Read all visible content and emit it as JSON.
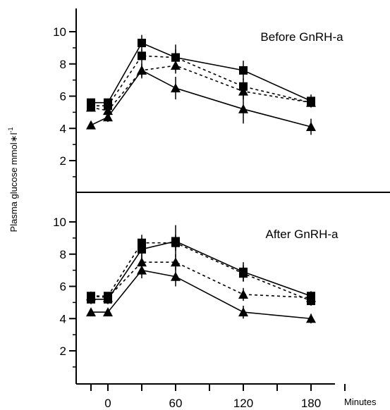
{
  "chart_data": {
    "type": "line",
    "ylabel": "Plasma glucose mmol∗l",
    "ylabel_superscript": "-1",
    "x_unit_label": "Minutes",
    "x_ticks": [
      0,
      60,
      120,
      180
    ],
    "x_tick_labels": [
      "0",
      "60",
      "120",
      "180"
    ],
    "y_ticks": [
      2,
      4,
      6,
      8,
      10
    ],
    "y_tick_labels": [
      "2",
      "4",
      "6",
      "8",
      "10"
    ],
    "x": [
      -15,
      0,
      30,
      60,
      120,
      180
    ],
    "xlim": [
      -25,
      210
    ],
    "ylim": [
      0,
      11
    ],
    "grid": false,
    "panels": [
      {
        "title": "Before GnRH-a",
        "series": [
          {
            "marker": "square",
            "line": "solid",
            "values": [
              5.6,
              5.6,
              9.3,
              8.4,
              7.6,
              5.7
            ],
            "errors": [
              0.25,
              0.25,
              0.5,
              0.8,
              0.6,
              0.4
            ]
          },
          {
            "marker": "square",
            "line": "dashed",
            "values": [
              5.4,
              5.4,
              8.5,
              8.4,
              6.6,
              5.6
            ],
            "errors": [
              0.2,
              0.2,
              0.4,
              0.5,
              0.5,
              0.3
            ]
          },
          {
            "marker": "triangle",
            "line": "dashed",
            "values": [
              5.3,
              5.1,
              7.6,
              7.9,
              6.3,
              5.6
            ],
            "errors": [
              0.2,
              0.2,
              0.4,
              0.5,
              0.5,
              0.3
            ]
          },
          {
            "marker": "triangle",
            "line": "solid",
            "values": [
              4.2,
              4.7,
              7.6,
              6.5,
              5.2,
              4.1
            ],
            "errors": [
              0.2,
              0.3,
              0.5,
              0.7,
              0.9,
              0.5
            ]
          }
        ]
      },
      {
        "title": "After   GnRH-a",
        "series": [
          {
            "marker": "square",
            "line": "solid",
            "values": [
              5.2,
              5.2,
              8.3,
              8.8,
              6.9,
              5.4
            ],
            "errors": [
              0.3,
              0.3,
              0.7,
              1.0,
              0.6,
              0.3
            ]
          },
          {
            "marker": "square",
            "line": "dashed",
            "values": [
              5.4,
              5.4,
              8.7,
              8.7,
              6.8,
              5.1
            ],
            "errors": [
              0.2,
              0.2,
              0.5,
              0.5,
              0.5,
              0.3
            ]
          },
          {
            "marker": "triangle",
            "line": "dashed",
            "values": [
              5.4,
              5.3,
              7.5,
              7.5,
              5.5,
              5.3
            ],
            "errors": [
              0.2,
              0.2,
              0.5,
              0.5,
              0.4,
              0.3
            ]
          },
          {
            "marker": "triangle",
            "line": "solid",
            "values": [
              4.4,
              4.4,
              7.0,
              6.6,
              4.4,
              4.0
            ],
            "errors": [
              0.2,
              0.2,
              0.5,
              0.6,
              0.4,
              0.3
            ]
          }
        ]
      }
    ]
  }
}
